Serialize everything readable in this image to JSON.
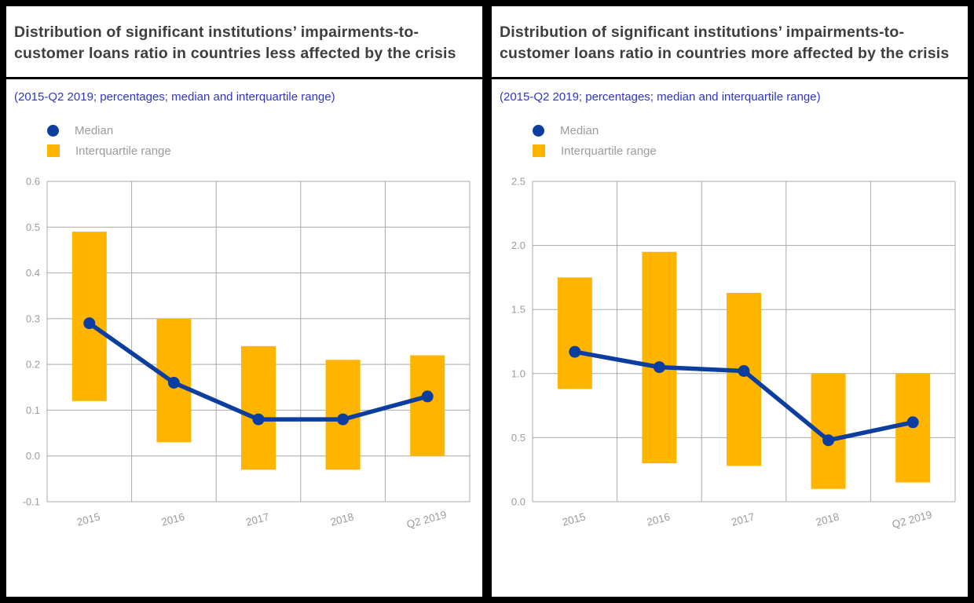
{
  "colors": {
    "median": "#0b3e9e",
    "iqr": "#ffb400",
    "grid": "#a9a9a9",
    "tick": "#9c9c9c",
    "subtitle": "#2f35cb",
    "title": "#3e3e3e",
    "rule": "#000000"
  },
  "panels": [
    {
      "title": "Distribution of significant institutions’ impairments-to-customer loans ratio in countries less affected by the crisis",
      "subtitle": "(2015-Q2 2019; percentages; median and interquartile range)",
      "legend": {
        "median": "Median",
        "iqr": "Interquartile range"
      }
    },
    {
      "title": "Distribution of significant institutions’ impairments-to-customer loans ratio in countries more affected by the crisis",
      "subtitle": "(2015-Q2 2019; percentages; median and interquartile range)",
      "legend": {
        "median": "Median",
        "iqr": "Interquartile range"
      }
    }
  ],
  "chart_data": [
    {
      "type": "bar",
      "subtype": "floating-range-bars-with-median-line",
      "title": "Distribution of significant institutions’ impairments-to-customer loans ratio in countries less affected by the crisis",
      "subtitle": "(2015-Q2 2019; percentages; median and interquartile range)",
      "categories": [
        "2015",
        "2016",
        "2017",
        "2018",
        "Q2 2019"
      ],
      "series": [
        {
          "name": "Interquartile range",
          "type": "range-bar",
          "low": [
            0.12,
            0.03,
            -0.03,
            -0.03,
            0.0
          ],
          "high": [
            0.49,
            0.3,
            0.24,
            0.21,
            0.22
          ]
        },
        {
          "name": "Median",
          "type": "line",
          "values": [
            0.29,
            0.16,
            0.08,
            0.08,
            0.13
          ]
        }
      ],
      "xlabel": "",
      "ylabel": "",
      "ylim": [
        -0.1,
        0.6
      ],
      "yticks": [
        0.6,
        0.5,
        0.4,
        0.3,
        0.2,
        0.1,
        0.0,
        -0.1
      ],
      "grid": true,
      "legend_position": "top-left"
    },
    {
      "type": "bar",
      "subtype": "floating-range-bars-with-median-line",
      "title": "Distribution of significant institutions’ impairments-to-customer loans ratio in countries more affected by the crisis",
      "subtitle": "(2015-Q2 2019; percentages; median and interquartile range)",
      "categories": [
        "2015",
        "2016",
        "2017",
        "2018",
        "Q2 2019"
      ],
      "series": [
        {
          "name": "Interquartile range",
          "type": "range-bar",
          "low": [
            0.88,
            0.3,
            0.28,
            0.1,
            0.15
          ],
          "high": [
            1.75,
            1.95,
            1.63,
            1.0,
            1.0
          ]
        },
        {
          "name": "Median",
          "type": "line",
          "values": [
            1.17,
            1.05,
            1.02,
            0.48,
            0.62
          ]
        }
      ],
      "xlabel": "",
      "ylabel": "",
      "ylim": [
        0.0,
        2.5
      ],
      "yticks": [
        2.5,
        2.0,
        1.5,
        1.0,
        0.5,
        0.0
      ],
      "grid": true,
      "legend_position": "top-left"
    }
  ]
}
